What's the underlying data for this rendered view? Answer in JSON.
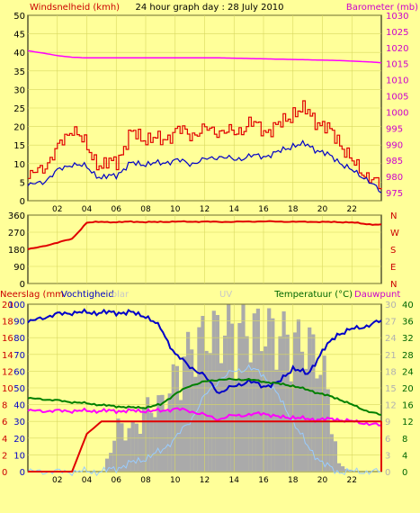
{
  "colors": {
    "background": "#FFFF99",
    "plot_bg": "#FFFF99",
    "grid": "#D8D860",
    "axis": "#000000",
    "wind_gust": "#E00000",
    "wind_avg": "#0000C8",
    "barometer": "#FF00FF",
    "direction": "#E00000",
    "humidity": "#0000C8",
    "temperature": "#008000",
    "dewpoint": "#FF00FF",
    "rain": "#E00000",
    "solar": "#AAAAAA",
    "uv": "#99CCFF",
    "red_label": "#CC0000",
    "magenta_label": "#CC00CC",
    "green_label": "#006600",
    "grey_label": "#C8C8C8"
  },
  "chart_data": [
    {
      "type": "line",
      "title": "24 hour graph day : 28 July 2010",
      "ylabel": "Windsnelheid (kmh)",
      "y2label": "Barometer (mb)",
      "ylim": [
        0,
        50
      ],
      "y2lim": [
        972.5,
        1030
      ],
      "yticks": [
        "0",
        "5",
        "10",
        "15",
        "20",
        "25",
        "30",
        "35",
        "40",
        "45",
        "50"
      ],
      "y2ticks": [
        "975",
        "980",
        "985",
        "990",
        "995",
        "1000",
        "1005",
        "1010",
        "1015",
        "1020",
        "1025",
        "1030"
      ],
      "xticks": [
        "02",
        "04",
        "06",
        "08",
        "10",
        "12",
        "14",
        "16",
        "18",
        "20",
        "22"
      ],
      "x_hours": [
        0,
        1,
        2,
        3,
        4,
        5,
        6,
        7,
        8,
        9,
        10,
        11,
        12,
        13,
        14,
        15,
        16,
        17,
        18,
        19,
        20,
        21,
        22,
        23,
        24
      ],
      "series": [
        {
          "name": "",
          "color_key": "wind_gust",
          "axis": "left",
          "values": [
            6,
            9,
            14,
            20,
            14,
            9,
            11,
            18,
            17,
            16,
            19,
            18,
            19,
            19,
            18,
            21,
            19,
            20,
            24,
            24,
            20,
            17,
            10,
            7,
            3
          ]
        },
        {
          "name": "",
          "color_key": "wind_avg",
          "axis": "left",
          "values": [
            4,
            5,
            8,
            10,
            9,
            6,
            7,
            10,
            10,
            10,
            11,
            10,
            11,
            12,
            11,
            12,
            12,
            13,
            15,
            15,
            13,
            11,
            8,
            6,
            2
          ]
        },
        {
          "name": "",
          "color_key": "barometer",
          "axis": "right",
          "values": [
            1019,
            1018.3,
            1017.5,
            1017,
            1016.8,
            1016.8,
            1016.8,
            1016.8,
            1016.8,
            1016.8,
            1016.8,
            1016.8,
            1016.8,
            1016.8,
            1016.7,
            1016.6,
            1016.5,
            1016.4,
            1016.3,
            1016.2,
            1016.1,
            1016,
            1015.8,
            1015.6,
            1015.3
          ]
        }
      ]
    },
    {
      "type": "line",
      "ylabel": "",
      "ylim": [
        0,
        360
      ],
      "yticks": [
        "0",
        "90",
        "180",
        "270",
        "360"
      ],
      "y2ticks": [
        "N",
        "E",
        "S",
        "W",
        "N"
      ],
      "x_hours": [
        0,
        1,
        2,
        3,
        4,
        5,
        6,
        7,
        8,
        9,
        10,
        11,
        12,
        13,
        14,
        15,
        16,
        17,
        18,
        19,
        20,
        21,
        22,
        23,
        24
      ],
      "series": [
        {
          "name": "",
          "color_key": "direction",
          "values": [
            180,
            195,
            215,
            235,
            320,
            325,
            322,
            326,
            323,
            324,
            326,
            325,
            326,
            324,
            325,
            326,
            327,
            326,
            325,
            325,
            324,
            323,
            322,
            312,
            310
          ]
        }
      ]
    },
    {
      "type": "line",
      "labels": {
        "rain": "Neerslag (mm",
        "humidity": "Vochtigheid",
        "solar": "olar",
        "uv": "UV",
        "temperature": "Temperatuur (°C)",
        "dewpoint": "Dauwpunt"
      },
      "rain_ticks": [
        "0",
        "2",
        "4",
        "6",
        "8",
        "10",
        "12",
        "14",
        "16",
        "18",
        "20"
      ],
      "humidity_ticks": [
        "0",
        "10",
        "20",
        "30",
        "40",
        "50",
        "60",
        "70",
        "80",
        "90",
        "100"
      ],
      "solar_ticks": [
        "0",
        "3",
        "6",
        "9",
        "12",
        "15",
        "18",
        "21",
        "24",
        "27",
        "30"
      ],
      "temp_ticks": [
        "0",
        "4",
        "8",
        "12",
        "16",
        "20",
        "24",
        "28",
        "32",
        "36",
        "40"
      ],
      "xticks": [
        "02",
        "04",
        "06",
        "08",
        "10",
        "12",
        "14",
        "16",
        "18",
        "20",
        "22"
      ],
      "x_hours": [
        0,
        1,
        2,
        3,
        4,
        5,
        6,
        7,
        8,
        9,
        10,
        11,
        12,
        13,
        14,
        15,
        16,
        17,
        18,
        19,
        20,
        21,
        22,
        23,
        24
      ],
      "series": [
        {
          "name": "",
          "color_key": "humidity",
          "axis": "humidity",
          "values": [
            89,
            92,
            94,
            95,
            95,
            95,
            95,
            95,
            93,
            86,
            70,
            63,
            57,
            47,
            51,
            54,
            51,
            53,
            62,
            58,
            72,
            82,
            85,
            87,
            90
          ]
        },
        {
          "name": "",
          "color_key": "temperature",
          "axis": "temp",
          "values": [
            17.5,
            17.3,
            17,
            16.6,
            16.3,
            15.9,
            15.6,
            15.3,
            15.3,
            16,
            18.5,
            20.5,
            21.5,
            22,
            22,
            22,
            21.5,
            21,
            20.5,
            19.5,
            18.5,
            17.5,
            16,
            14.5,
            13.5
          ]
        },
        {
          "name": "",
          "color_key": "dewpoint",
          "axis": "temp",
          "values": [
            14.5,
            14.5,
            14.5,
            14.5,
            14.5,
            14.5,
            14.5,
            14.5,
            14.5,
            14.5,
            15,
            14.5,
            13.5,
            12.5,
            13.5,
            13.5,
            14,
            13,
            13,
            12.5,
            12.5,
            12.5,
            12,
            11.5,
            11
          ]
        },
        {
          "name": "",
          "color_key": "rain",
          "axis": "rain",
          "values": [
            0,
            0,
            0,
            0,
            4.5,
            6,
            6,
            6,
            6,
            6,
            6,
            6,
            6,
            6,
            6,
            6,
            6,
            6,
            6,
            6,
            6,
            6,
            6,
            6,
            6
          ]
        },
        {
          "name": "",
          "color_key": "solar",
          "axis": "humidity",
          "values": [
            0,
            0,
            0,
            0,
            0,
            0,
            32,
            30,
            45,
            48,
            70,
            88,
            97,
            100,
            100,
            100,
            100,
            97,
            92,
            90,
            70,
            5,
            0,
            0,
            0
          ]
        },
        {
          "name": "",
          "color_key": "uv",
          "axis": "humidity",
          "values": [
            0,
            0,
            0,
            0,
            0,
            0,
            2,
            5,
            8,
            12,
            20,
            30,
            45,
            55,
            60,
            62,
            58,
            45,
            30,
            15,
            5,
            0,
            0,
            0,
            0
          ]
        }
      ]
    }
  ]
}
